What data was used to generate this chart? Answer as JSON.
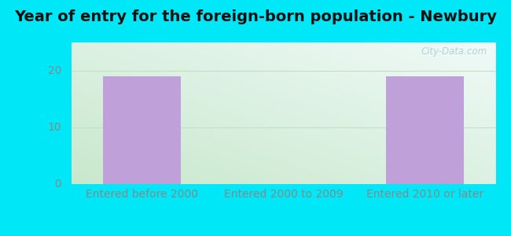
{
  "title": "Year of entry for the foreign-born population - Newbury",
  "categories": [
    "Entered before 2000",
    "Entered 2000 to 2009",
    "Entered 2010 or later"
  ],
  "values": [
    19,
    0,
    19
  ],
  "bar_color": "#c0a0d8",
  "bar_width": 0.55,
  "ylim": [
    0,
    25
  ],
  "yticks": [
    0,
    10,
    20
  ],
  "background_outer": "#00e8f8",
  "bg_top_left": "#d8f0e0",
  "bg_top_right": "#eef8f8",
  "bg_bottom_left": "#c8e8d0",
  "bg_bottom_right": "#d8f0e8",
  "grid_color": "#c8ddc8",
  "title_fontsize": 14,
  "tick_fontsize": 10,
  "ytick_color": "#888888",
  "xtick_color": "#888888",
  "watermark": "City-Data.com"
}
